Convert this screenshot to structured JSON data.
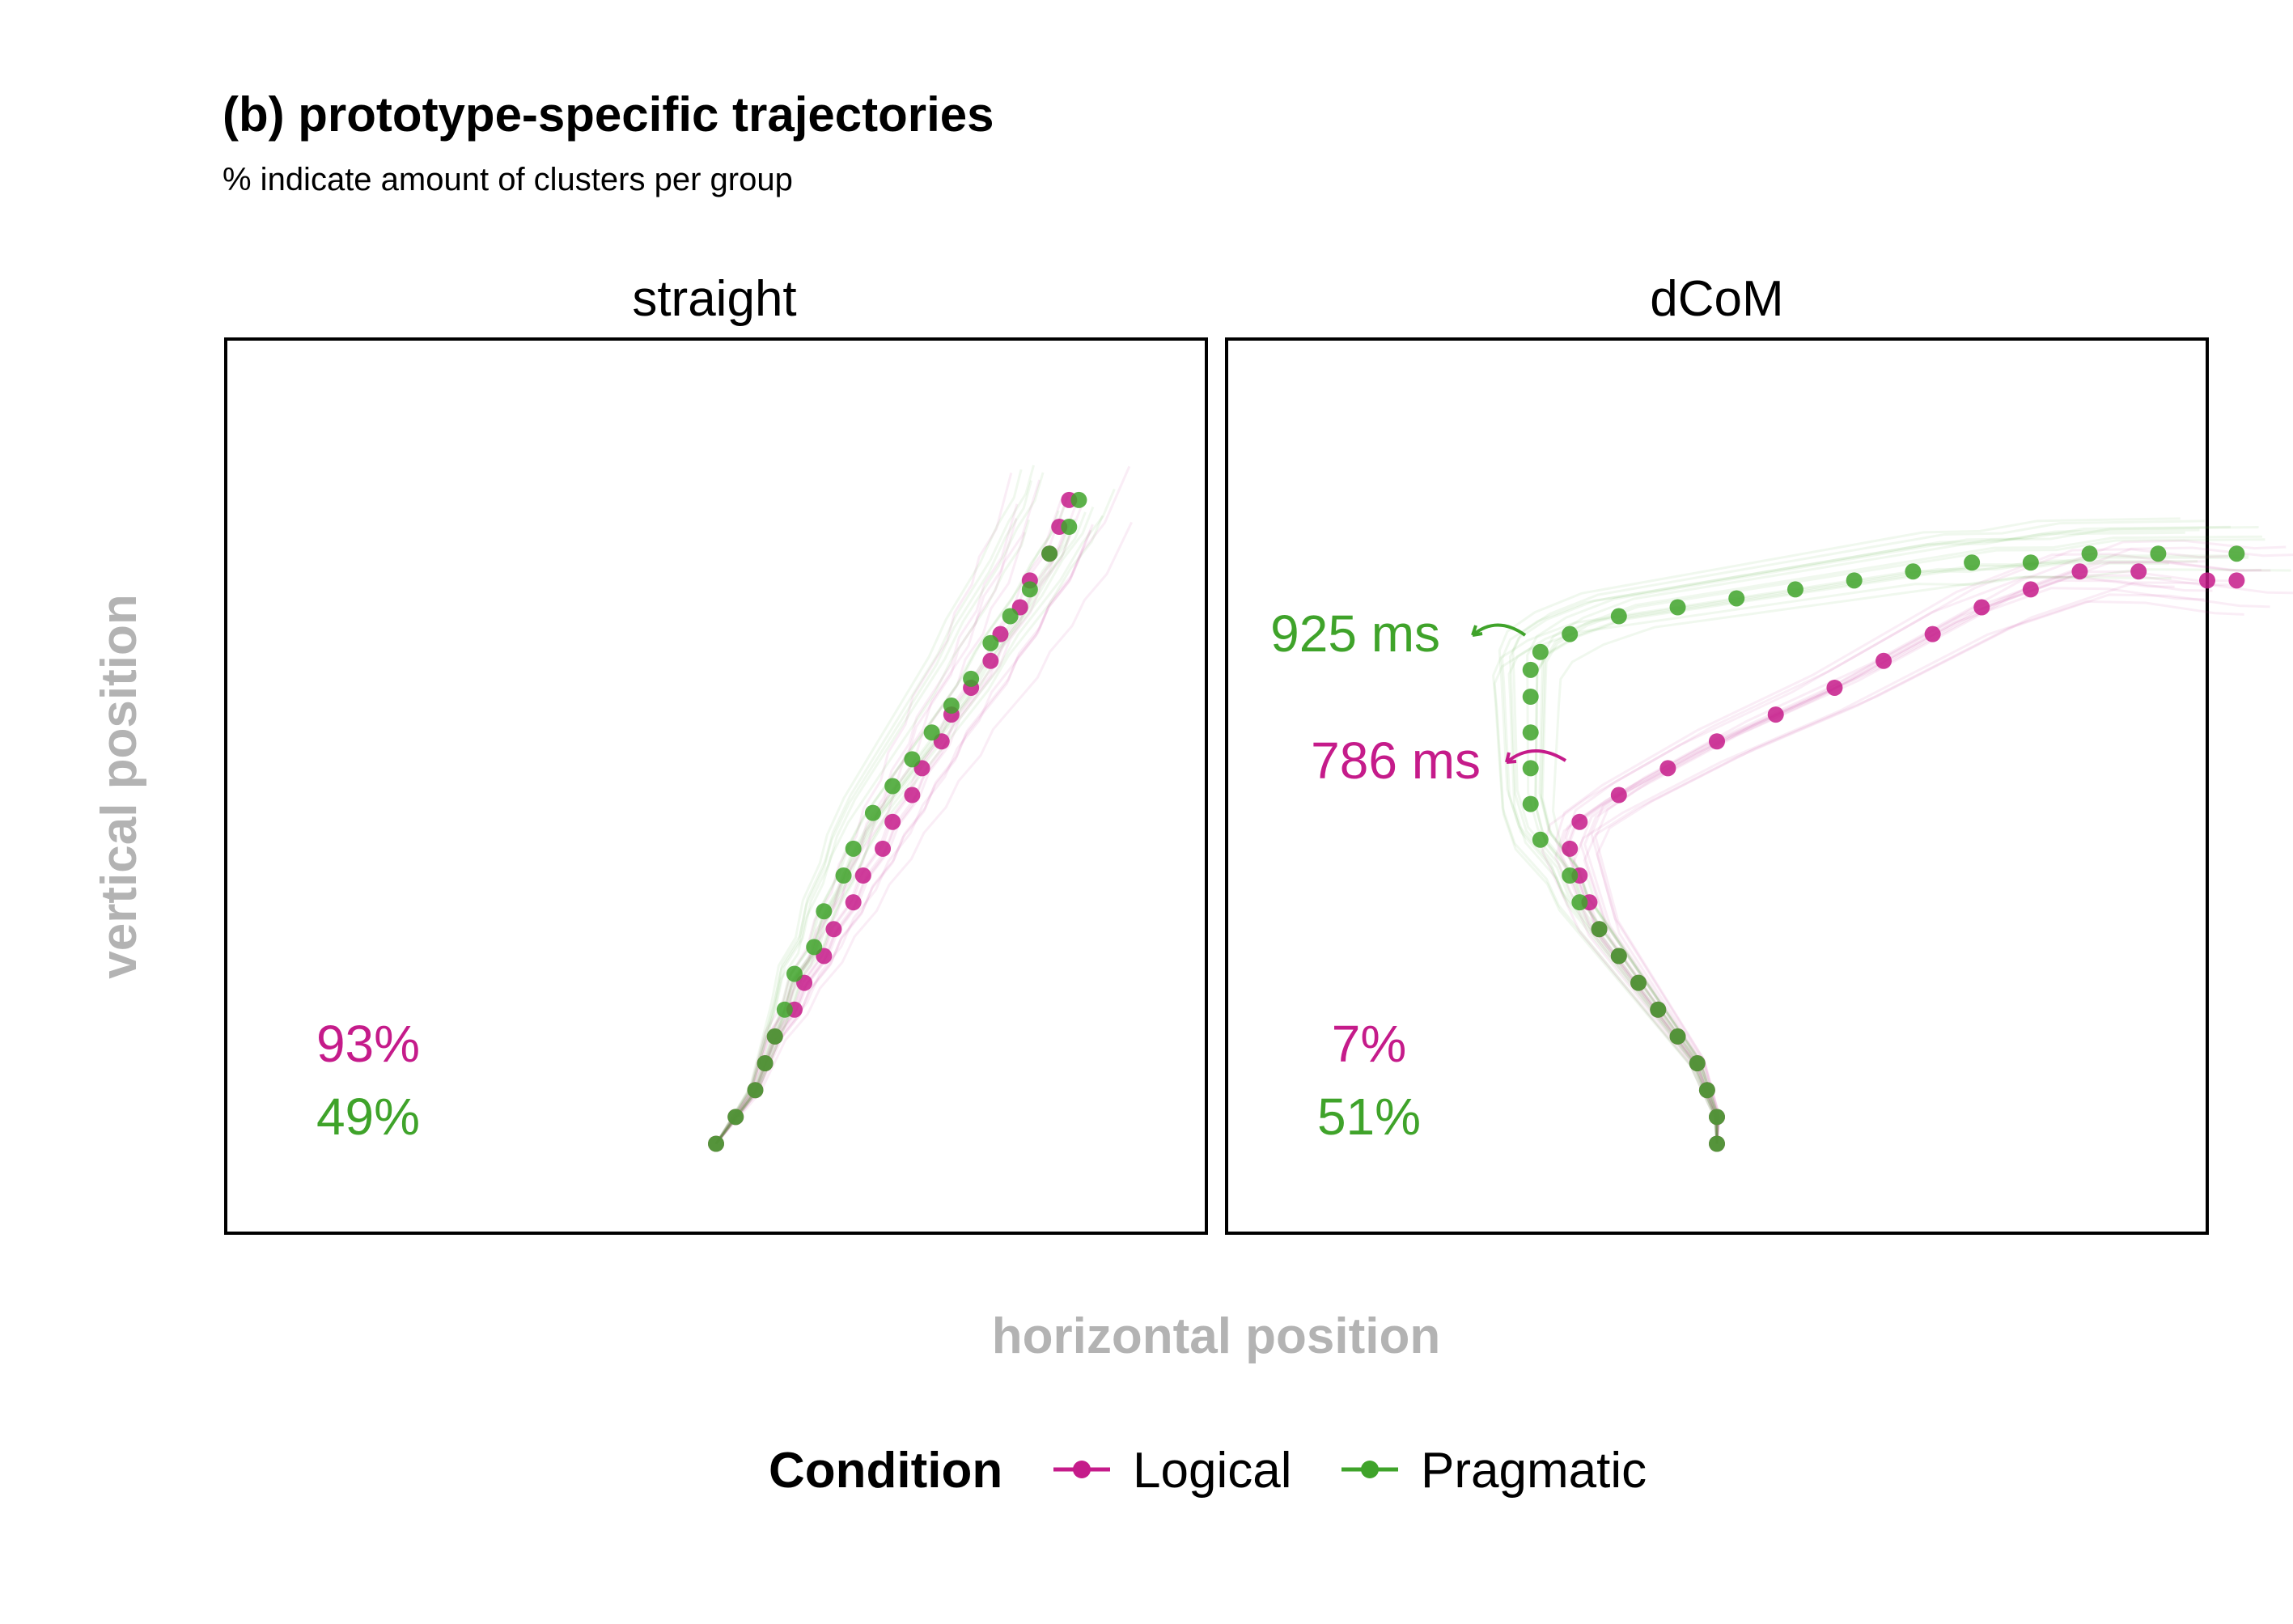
{
  "title": "(b) prototype-specific trajectories",
  "subtitle": "% indicate amount of clusters per group",
  "xlabel": "horizontal position",
  "ylabel": "vertical position",
  "colors": {
    "Logical": "#c51b8a",
    "Pragmatic": "#3fa32a",
    "axis_label": "#b3b3b3",
    "text": "#000000"
  },
  "legend": {
    "title": "Condition",
    "position": "bottom",
    "items": [
      "Logical",
      "Pragmatic"
    ]
  },
  "chart_data": [
    {
      "type": "scatter",
      "panel": "straight",
      "xlim": [
        0,
        100
      ],
      "ylim": [
        0,
        100
      ],
      "axis_ticks": "none",
      "series": [
        {
          "name": "Logical",
          "points": [
            [
              50,
              10
            ],
            [
              52,
              13
            ],
            [
              54,
              16
            ],
            [
              55,
              19
            ],
            [
              56,
              22
            ],
            [
              58,
              25
            ],
            [
              59,
              28
            ],
            [
              61,
              31
            ],
            [
              62,
              34
            ],
            [
              64,
              37
            ],
            [
              65,
              40
            ],
            [
              67,
              43
            ],
            [
              68,
              46
            ],
            [
              70,
              49
            ],
            [
              71,
              52
            ],
            [
              73,
              55
            ],
            [
              74,
              58
            ],
            [
              76,
              61
            ],
            [
              78,
              64
            ],
            [
              79,
              67
            ],
            [
              81,
              70
            ],
            [
              82,
              73
            ],
            [
              84,
              76
            ],
            [
              85,
              79
            ],
            [
              86,
              82
            ]
          ],
          "cluster_share": "93%"
        },
        {
          "name": "Pragmatic",
          "points": [
            [
              50,
              10
            ],
            [
              52,
              13
            ],
            [
              54,
              16
            ],
            [
              55,
              19
            ],
            [
              56,
              22
            ],
            [
              57,
              25
            ],
            [
              58,
              29
            ],
            [
              60,
              32
            ],
            [
              61,
              36
            ],
            [
              63,
              40
            ],
            [
              64,
              43
            ],
            [
              66,
              47
            ],
            [
              68,
              50
            ],
            [
              70,
              53
            ],
            [
              72,
              56
            ],
            [
              74,
              59
            ],
            [
              76,
              62
            ],
            [
              78,
              66
            ],
            [
              80,
              69
            ],
            [
              82,
              72
            ],
            [
              84,
              76
            ],
            [
              86,
              79
            ],
            [
              87,
              82
            ]
          ],
          "cluster_share": "49%"
        }
      ]
    },
    {
      "type": "scatter",
      "panel": "dCoM",
      "xlim": [
        0,
        100
      ],
      "ylim": [
        0,
        100
      ],
      "axis_ticks": "none",
      "series": [
        {
          "name": "Logical",
          "points": [
            [
              50,
              10
            ],
            [
              50,
              13
            ],
            [
              49,
              16
            ],
            [
              48,
              19
            ],
            [
              46,
              22
            ],
            [
              44,
              25
            ],
            [
              42,
              28
            ],
            [
              40,
              31
            ],
            [
              38,
              34
            ],
            [
              37,
              37
            ],
            [
              36,
              40
            ],
            [
              35,
              43
            ],
            [
              36,
              46
            ],
            [
              40,
              49
            ],
            [
              45,
              52
            ],
            [
              50,
              55
            ],
            [
              56,
              58
            ],
            [
              62,
              61
            ],
            [
              67,
              64
            ],
            [
              72,
              67
            ],
            [
              77,
              70
            ],
            [
              82,
              72
            ],
            [
              87,
              74
            ],
            [
              93,
              74
            ],
            [
              100,
              73
            ],
            [
              103,
              73
            ]
          ],
          "cluster_share": "7%",
          "annotation": "786 ms"
        },
        {
          "name": "Pragmatic",
          "points": [
            [
              50,
              10
            ],
            [
              50,
              13
            ],
            [
              49,
              16
            ],
            [
              48,
              19
            ],
            [
              46,
              22
            ],
            [
              44,
              25
            ],
            [
              42,
              28
            ],
            [
              40,
              31
            ],
            [
              38,
              34
            ],
            [
              36,
              37
            ],
            [
              35,
              40
            ],
            [
              32,
              44
            ],
            [
              31,
              48
            ],
            [
              31,
              52
            ],
            [
              31,
              56
            ],
            [
              31,
              60
            ],
            [
              31,
              63
            ],
            [
              32,
              65
            ],
            [
              35,
              67
            ],
            [
              40,
              69
            ],
            [
              46,
              70
            ],
            [
              52,
              71
            ],
            [
              58,
              72
            ],
            [
              64,
              73
            ],
            [
              70,
              74
            ],
            [
              76,
              75
            ],
            [
              82,
              75
            ],
            [
              88,
              76
            ],
            [
              95,
              76
            ],
            [
              103,
              76
            ]
          ],
          "cluster_share": "51%",
          "annotation": "925 ms"
        }
      ]
    }
  ]
}
